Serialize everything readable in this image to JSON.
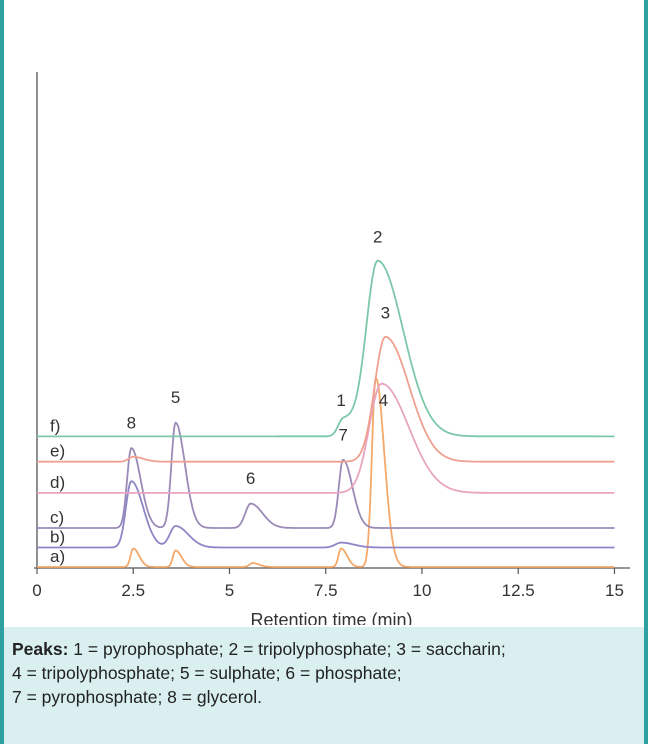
{
  "figure": {
    "header_color": "#2fa0a0",
    "caption_bg": "#daf0f0"
  },
  "caption": {
    "heading": "Peaks:",
    "lines": [
      " 1 = pyrophosphate; 2 = tripolyphosphate; 3 = saccharin;",
      "4 = tripolyphosphate; 5 = sulphate; 6 = phosphate;",
      "7 = pyrophosphate; 8 = glycerol."
    ]
  },
  "chart_data": {
    "type": "line",
    "title": "",
    "xlabel": "Retention time (min)",
    "ylabel": "",
    "xlim": [
      0,
      15.3
    ],
    "x_ticks": [
      "0",
      "2.5",
      "5",
      "7.5",
      "10",
      "12.5",
      "15"
    ],
    "x_tick_values": [
      0,
      2.5,
      5,
      7.5,
      10,
      12.5,
      15
    ],
    "grid": false,
    "legend": "none",
    "series": [
      {
        "name": "a)",
        "color": "#f4a86a",
        "baseline_offset": 0,
        "x_end": 15.0,
        "peaks": [
          {
            "x": 2.5,
            "height": 0.95,
            "width": 0.07
          },
          {
            "x": 3.6,
            "height": 0.85,
            "width": 0.07
          },
          {
            "x": 5.6,
            "height": 0.2,
            "width": 0.08
          },
          {
            "x": 7.9,
            "height": 0.95,
            "width": 0.07
          },
          {
            "x": 8.8,
            "height": 9.7,
            "width": 0.1
          }
        ]
      },
      {
        "name": "b)",
        "color": "#8c86c6",
        "baseline_offset": 1.0,
        "x_end": 15.0,
        "peaks": [
          {
            "x": 2.45,
            "height": 3.4,
            "width": 0.14
          },
          {
            "x": 3.6,
            "height": 1.1,
            "width": 0.15
          },
          {
            "x": 7.9,
            "height": 0.25,
            "width": 0.15
          }
        ]
      },
      {
        "name": "c)",
        "color": "#9a8ab8",
        "baseline_offset": 2.0,
        "x_end": 15.0,
        "peaks": [
          {
            "x": 2.45,
            "height": 4.1,
            "width": 0.11
          },
          {
            "x": 3.6,
            "height": 5.4,
            "width": 0.11
          },
          {
            "x": 5.55,
            "height": 1.25,
            "width": 0.14
          },
          {
            "x": 7.95,
            "height": 3.5,
            "width": 0.11
          }
        ]
      },
      {
        "name": "d)",
        "color": "#e8a4c0",
        "baseline_offset": 3.8,
        "x_end": 15.0,
        "peaks": [
          {
            "x": 8.95,
            "height": 5.6,
            "width": 0.32
          }
        ]
      },
      {
        "name": "e)",
        "color": "#f0a090",
        "baseline_offset": 5.4,
        "x_end": 15.0,
        "peaks": [
          {
            "x": 2.5,
            "height": 0.25,
            "width": 0.12
          },
          {
            "x": 9.05,
            "height": 6.4,
            "width": 0.28
          }
        ]
      },
      {
        "name": "f)",
        "color": "#7cc8a8",
        "baseline_offset": 6.7,
        "x_end": 15.0,
        "peaks": [
          {
            "x": 7.95,
            "height": 0.85,
            "width": 0.13
          },
          {
            "x": 8.85,
            "height": 9.0,
            "width": 0.3
          }
        ]
      }
    ],
    "peak_labels": [
      {
        "text": "1",
        "x": 7.9,
        "y": 8.25
      },
      {
        "text": "2",
        "x": 8.85,
        "y": 16.65
      },
      {
        "text": "3",
        "x": 9.05,
        "y": 12.75
      },
      {
        "text": "4",
        "x": 9.0,
        "y": 8.25
      },
      {
        "text": "5",
        "x": 3.6,
        "y": 8.4
      },
      {
        "text": "6",
        "x": 5.55,
        "y": 4.25
      },
      {
        "text": "7",
        "x": 7.95,
        "y": 6.5
      },
      {
        "text": "8",
        "x": 2.45,
        "y": 7.1
      }
    ]
  }
}
